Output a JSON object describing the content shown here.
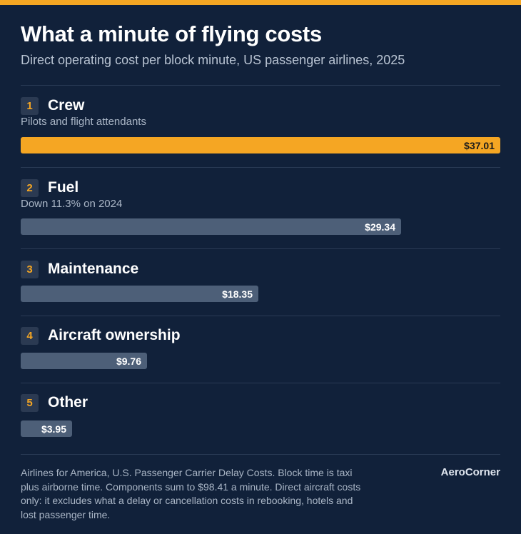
{
  "header": {
    "title": "What a minute of flying costs",
    "subtitle": "Direct operating cost per block minute, US passenger airlines, 2025"
  },
  "chart_data": {
    "type": "bar",
    "title": "What a minute of flying costs",
    "subtitle": "Direct operating cost per block minute, US passenger airlines, 2025",
    "categories": [
      "Crew",
      "Fuel",
      "Maintenance",
      "Aircraft ownership",
      "Other"
    ],
    "ranks": [
      "1",
      "2",
      "3",
      "4",
      "5"
    ],
    "notes": [
      "Pilots and flight attendants",
      "Down 11.3% on 2024",
      "",
      "",
      ""
    ],
    "values": [
      37.01,
      29.34,
      18.35,
      9.76,
      3.95
    ],
    "value_labels": [
      "$37.01",
      "$29.34",
      "$18.35",
      "$9.76",
      "$3.95"
    ],
    "xlim": [
      0,
      37.01
    ],
    "highlight_index": 0,
    "highlight_color": "#f5a623",
    "bar_color": "#4d5f78"
  },
  "footer": {
    "note": "Airlines for America, U.S. Passenger Carrier Delay Costs. Block time is taxi plus airborne time. Components sum to $98.41 a minute. Direct aircraft costs only: it excludes what a delay or cancellation costs in rebooking, hotels and lost passenger time.",
    "brand": "AeroCorner"
  },
  "colors": {
    "background": "#11213a",
    "accent": "#f5a623"
  }
}
